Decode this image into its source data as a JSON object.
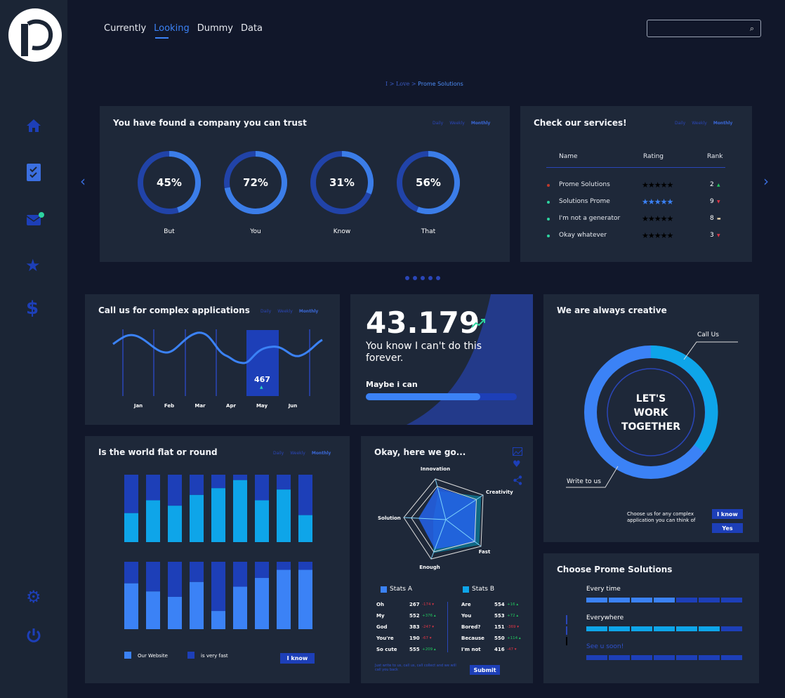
{
  "nav": {
    "tabs": [
      "Currently",
      "Looking",
      "Dummy",
      "Data"
    ],
    "active": 1
  },
  "breadcrumb": {
    "a": "I >",
    "b": "Love >",
    "c": "Prome Solutions"
  },
  "periods": [
    "Daily",
    "Weekly",
    "Monthly"
  ],
  "trust": {
    "title": "You have found a company you can trust",
    "donuts": [
      {
        "value": 45,
        "label": "45%",
        "name": "But"
      },
      {
        "value": 72,
        "label": "72%",
        "name": "You"
      },
      {
        "value": 31,
        "label": "31%",
        "name": "Know"
      },
      {
        "value": 56,
        "label": "56%",
        "name": "That"
      }
    ]
  },
  "services": {
    "title": "Check our services!",
    "headers": [
      "Name",
      "Rating",
      "Rank"
    ],
    "rows": [
      {
        "name": "Prome Solutions",
        "stars": "★★★★★",
        "rank": "2",
        "trend": "▲",
        "dot": "#c0392b",
        "starcolor": "#000000",
        "tcolor": "#22c55e"
      },
      {
        "name": "Solutions Prome",
        "stars": "★★★★★",
        "rank": "9",
        "trend": "▼",
        "dot": "#2dd4a0",
        "starcolor": "#3b82f6",
        "tcolor": "#dc3545"
      },
      {
        "name": "I'm not a generator",
        "stars": "★★★★★",
        "rank": "8",
        "trend": "▬",
        "dot": "#2dd4a0",
        "starcolor": "#000000",
        "tcolor": "#f5deb3"
      },
      {
        "name": "Okay whatever",
        "stars": "★★★★★",
        "rank": "3",
        "trend": "▼",
        "dot": "#2dd4a0",
        "starcolor": "#000000",
        "tcolor": "#dc3545"
      }
    ]
  },
  "call": {
    "title": "Call us for complex applications",
    "months": [
      "Jan",
      "Feb",
      "Mar",
      "Apr",
      "May",
      "Jun"
    ],
    "highlight_value": "467",
    "highlight_arrow": "▲"
  },
  "stat": {
    "number": "43.179",
    "text": "You know I can't do this forever.",
    "bar_label": "Maybe i can",
    "progress": 0.76
  },
  "creative": {
    "title": "We are always creative",
    "donut": {
      "a": "LET'S",
      "b": "WORK",
      "c": "TOGETHER"
    },
    "call_us": "Call Us",
    "write": "Write to us",
    "caption": "Choose us for any complex application you can think of",
    "btn1": "I know",
    "btn2": "Yes"
  },
  "world": {
    "title": "Is the world flat or round",
    "legend": [
      "Our Website",
      "is very fast"
    ],
    "button": "I know"
  },
  "radar": {
    "title": "Okay, here we go...",
    "statsA": "Stats A",
    "statsB": "Stats B",
    "a": [
      [
        "Oh",
        "267",
        "-174 ▾",
        "dn"
      ],
      [
        "My",
        "552",
        "+376 ▴",
        "up"
      ],
      [
        "God",
        "383",
        "-247 ▾",
        "dn"
      ],
      [
        "You're",
        "190",
        "-67 ▾",
        "dn"
      ],
      [
        "So cute",
        "555",
        "+209 ▴",
        "up"
      ]
    ],
    "b": [
      [
        "Are",
        "554",
        "+16 ▴",
        "up"
      ],
      [
        "You",
        "553",
        "+72 ▴",
        "up"
      ],
      [
        "Bored?",
        "151",
        "-369 ▾",
        "dn"
      ],
      [
        "Because",
        "550",
        "+114 ▴",
        "up"
      ],
      [
        "I'm not",
        "416",
        "-47 ▾",
        "dn"
      ]
    ],
    "note": "Just write to us, call us, call collect and we will call you back",
    "submit": "Submit"
  },
  "choose": {
    "title": "Choose Prome Solutions",
    "items": [
      {
        "label": "Every time",
        "filled": 4
      },
      {
        "label": "Everywhere",
        "filled": 6
      },
      {
        "label": "See u soon!",
        "filled": 0
      }
    ]
  },
  "chart_data": [
    {
      "type": "line",
      "title": "Call us for complex applications",
      "categories": [
        "Jan",
        "Feb",
        "Mar",
        "Apr",
        "May",
        "Jun"
      ],
      "highlight": {
        "category": "May",
        "value": 467
      }
    },
    {
      "type": "bar",
      "title": "Is the world flat or round",
      "stacked": true,
      "series": [
        {
          "name": "Our Website",
          "values": [
            43,
            62,
            54,
            70,
            80,
            92,
            62,
            78,
            40
          ]
        },
        {
          "name": "is very fast",
          "values": [
            57,
            38,
            46,
            30,
            20,
            8,
            38,
            22,
            60
          ]
        }
      ]
    },
    {
      "type": "bar",
      "title": "Is the world flat or round (lower)",
      "stacked": true,
      "series": [
        {
          "name": "Our Website",
          "values": [
            68,
            56,
            48,
            70,
            27,
            63,
            76,
            88,
            88
          ]
        },
        {
          "name": "is very fast",
          "values": [
            32,
            44,
            52,
            30,
            73,
            37,
            24,
            12,
            12
          ]
        }
      ]
    },
    {
      "type": "radar",
      "title": "Okay, here we go...",
      "axes": [
        "Innovation",
        "Creativity",
        "Fast",
        "Enough",
        "Solution"
      ],
      "series": [
        {
          "name": "Stats A",
          "values": [
            0.8,
            0.8,
            0.85,
            0.75,
            0.65
          ]
        },
        {
          "name": "Stats B",
          "values": [
            0.7,
            0.95,
            0.95,
            0.85,
            0.3
          ]
        }
      ]
    }
  ],
  "colors": {
    "accent": "#3b82f6",
    "cyan": "#0ea5e9",
    "dark": "#1d3fb8"
  }
}
